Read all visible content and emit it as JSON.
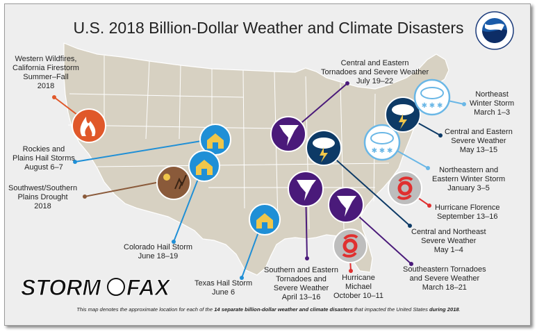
{
  "title": "U.S. 2018 Billion-Dollar Weather and Climate Disasters",
  "events": [
    {
      "id": "wildfires",
      "lines": [
        "Western Wildfires,",
        "California Firestorm",
        "Summer–Fall",
        "2018"
      ],
      "color": "#e0582a",
      "icon": "fire-icon"
    },
    {
      "id": "rockies-hail",
      "lines": [
        "Rockies and",
        "Plains Hail Storms",
        "August 6–7"
      ],
      "color": "#1f8fd6",
      "icon": "hail-house-icon"
    },
    {
      "id": "drought",
      "lines": [
        "Southwest/Southern",
        "Plains Drought",
        "2018"
      ],
      "color": "#8a5a3a",
      "icon": "drought-icon"
    },
    {
      "id": "colorado-hail",
      "lines": [
        "Colorado Hail Storm",
        "June 18–19"
      ],
      "color": "#1f8fd6",
      "icon": "hail-house-icon"
    },
    {
      "id": "texas-hail",
      "lines": [
        "Texas Hail Storm",
        "June 6"
      ],
      "color": "#1f8fd6",
      "icon": "hail-house-icon"
    },
    {
      "id": "central-eastern-tornadoes",
      "lines": [
        "Central and Eastern",
        "Tornadoes and Severe Weather",
        "July 19–22"
      ],
      "color": "#4a1a7a",
      "icon": "tornado-icon"
    },
    {
      "id": "southern-eastern-tornadoes",
      "lines": [
        "Southern and Eastern",
        "Tornadoes and",
        "Severe Weather",
        "April 13–16"
      ],
      "color": "#4a1a7a",
      "icon": "tornado-icon"
    },
    {
      "id": "michael",
      "lines": [
        "Hurricane",
        "Michael",
        "October 10–11"
      ],
      "color": "#e03030",
      "icon": "hurricane-icon"
    },
    {
      "id": "southeastern-tornadoes",
      "lines": [
        "Southeastern Tornadoes",
        "and Severe Weather",
        "March 18–21"
      ],
      "color": "#4a1a7a",
      "icon": "tornado-icon"
    },
    {
      "id": "central-northeast-severe",
      "lines": [
        "Central and Northeast",
        "Severe Weather",
        "May 1–4"
      ],
      "color": "#0d3a66",
      "icon": "storm-cloud-icon"
    },
    {
      "id": "florence",
      "lines": [
        "Hurricane Florence",
        "September 13–16"
      ],
      "color": "#e03030",
      "icon": "hurricane-icon"
    },
    {
      "id": "ne-eastern-winter",
      "lines": [
        "Northeastern and",
        "Eastern Winter Storm",
        "January 3–5"
      ],
      "color": "#6ab7e6",
      "icon": "winter-storm-icon"
    },
    {
      "id": "central-eastern-severe",
      "lines": [
        "Central and Eastern",
        "Severe Weather",
        "May 13–15"
      ],
      "color": "#0d3a66",
      "icon": "storm-cloud-icon"
    },
    {
      "id": "ne-winter",
      "lines": [
        "Northeast",
        "Winter Storm",
        "March 1–3"
      ],
      "color": "#6ab7e6",
      "icon": "winter-storm-icon"
    }
  ],
  "footnote": {
    "pre": "This map denotes the approximate location for each of the ",
    "bold1": "14 separate billion-dollar weather and climate disasters",
    "mid": " that impacted the United States ",
    "bold2": "during 2018",
    "post": "."
  },
  "logo": {
    "text": "STORMFAX",
    "noaa": "NOAA"
  }
}
